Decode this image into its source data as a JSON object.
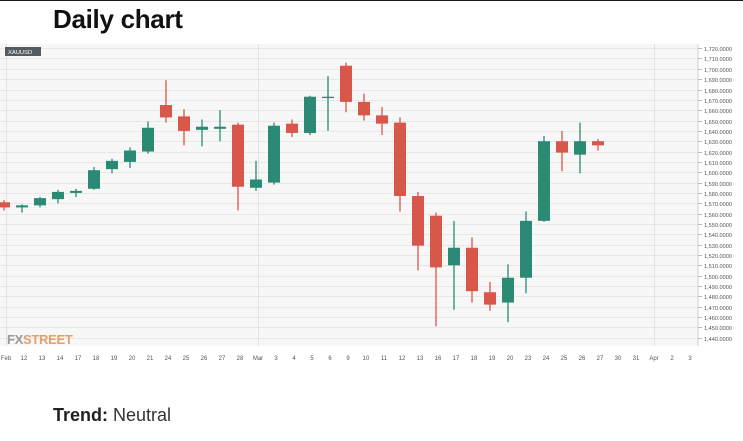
{
  "page": {
    "title": "Daily chart",
    "trend_label": "Trend:",
    "trend_value": "Neutral"
  },
  "chart_data": {
    "type": "candlestick",
    "symbol": "XAUUSD",
    "watermark": {
      "fx": "FX",
      "street": "STREET"
    },
    "colors": {
      "bull": "#2a8a74",
      "bear": "#d9574a",
      "grid": "#e8e8e8",
      "plot_bg": "#f7f7f7",
      "axis_text": "#555555",
      "watermark_fx": "#9a9a9a",
      "watermark_street": "#e0a36a"
    },
    "ylim": [
      1432,
      1724
    ],
    "y_ticks": [
      1440,
      1450,
      1460,
      1470,
      1480,
      1490,
      1500,
      1510,
      1520,
      1530,
      1540,
      1550,
      1560,
      1570,
      1580,
      1590,
      1600,
      1610,
      1620,
      1630,
      1640,
      1650,
      1660,
      1670,
      1680,
      1690,
      1700,
      1710,
      1720
    ],
    "y_tick_labels": [
      "1,440.0000",
      "1,450.0000",
      "1,460.0000",
      "1,470.0000",
      "1,480.0000",
      "1,490.0000",
      "1,500.0000",
      "1,510.0000",
      "1,520.0000",
      "1,530.0000",
      "1,540.0000",
      "1,550.0000",
      "1,560.0000",
      "1,570.0000",
      "1,580.0000",
      "1,590.0000",
      "1,600.0000",
      "1,610.0000",
      "1,620.0000",
      "1,630.0000",
      "1,640.0000",
      "1,650.0000",
      "1,660.0000",
      "1,670.0000",
      "1,680.0000",
      "1,690.0000",
      "1,700.0000",
      "1,710.0000",
      "1,720.0000"
    ],
    "x_labels": [
      "Feb",
      "12",
      "13",
      "14",
      "17",
      "18",
      "19",
      "20",
      "21",
      "24",
      "25",
      "26",
      "27",
      "28",
      "Mar",
      "3",
      "4",
      "5",
      "6",
      "9",
      "10",
      "11",
      "12",
      "13",
      "16",
      "17",
      "18",
      "19",
      "20",
      "23",
      "24",
      "25",
      "26",
      "27",
      "30",
      "31",
      "Apr",
      "2",
      "3"
    ],
    "x_gridlines_at": [
      "Feb",
      "Mar",
      "Apr"
    ],
    "candles": [
      {
        "date": "11",
        "open": 1571,
        "high": 1573,
        "low": 1563,
        "close": 1566
      },
      {
        "date": "12",
        "open": 1566,
        "high": 1569,
        "low": 1561,
        "close": 1568
      },
      {
        "date": "13",
        "open": 1568,
        "high": 1576,
        "low": 1566,
        "close": 1575
      },
      {
        "date": "14",
        "open": 1574,
        "high": 1583,
        "low": 1570,
        "close": 1581
      },
      {
        "date": "17",
        "open": 1580,
        "high": 1584,
        "low": 1576,
        "close": 1582
      },
      {
        "date": "18",
        "open": 1584,
        "high": 1605,
        "low": 1583,
        "close": 1602
      },
      {
        "date": "19",
        "open": 1603,
        "high": 1613,
        "low": 1599,
        "close": 1611
      },
      {
        "date": "20",
        "open": 1610,
        "high": 1624,
        "low": 1604,
        "close": 1621
      },
      {
        "date": "21",
        "open": 1620,
        "high": 1649,
        "low": 1618,
        "close": 1643
      },
      {
        "date": "24",
        "open": 1665,
        "high": 1689,
        "low": 1648,
        "close": 1653
      },
      {
        "date": "25",
        "open": 1654,
        "high": 1661,
        "low": 1626,
        "close": 1640
      },
      {
        "date": "26",
        "open": 1641,
        "high": 1651,
        "low": 1625,
        "close": 1644
      },
      {
        "date": "27",
        "open": 1642,
        "high": 1660,
        "low": 1630,
        "close": 1644
      },
      {
        "date": "28",
        "open": 1646,
        "high": 1648,
        "low": 1563,
        "close": 1586
      },
      {
        "date": "Mar 2",
        "open": 1585,
        "high": 1611,
        "low": 1582,
        "close": 1593
      },
      {
        "date": "3",
        "open": 1590,
        "high": 1648,
        "low": 1588,
        "close": 1645
      },
      {
        "date": "4",
        "open": 1647,
        "high": 1651,
        "low": 1634,
        "close": 1638
      },
      {
        "date": "5",
        "open": 1638,
        "high": 1674,
        "low": 1636,
        "close": 1673
      },
      {
        "date": "6",
        "open": 1673,
        "high": 1693,
        "low": 1640,
        "close": 1673
      },
      {
        "date": "9",
        "open": 1703,
        "high": 1706,
        "low": 1658,
        "close": 1668
      },
      {
        "date": "10",
        "open": 1668,
        "high": 1676,
        "low": 1650,
        "close": 1655
      },
      {
        "date": "11",
        "open": 1655,
        "high": 1663,
        "low": 1636,
        "close": 1647
      },
      {
        "date": "12",
        "open": 1648,
        "high": 1653,
        "low": 1562,
        "close": 1577
      },
      {
        "date": "13",
        "open": 1577,
        "high": 1581,
        "low": 1505,
        "close": 1529
      },
      {
        "date": "16",
        "open": 1558,
        "high": 1561,
        "low": 1451,
        "close": 1508
      },
      {
        "date": "17",
        "open": 1510,
        "high": 1553,
        "low": 1467,
        "close": 1527
      },
      {
        "date": "18",
        "open": 1527,
        "high": 1537,
        "low": 1474,
        "close": 1485
      },
      {
        "date": "19",
        "open": 1484,
        "high": 1494,
        "low": 1466,
        "close": 1472
      },
      {
        "date": "20",
        "open": 1474,
        "high": 1511,
        "low": 1455,
        "close": 1498
      },
      {
        "date": "23",
        "open": 1498,
        "high": 1562,
        "low": 1483,
        "close": 1553
      },
      {
        "date": "24",
        "open": 1553,
        "high": 1635,
        "low": 1552,
        "close": 1630
      },
      {
        "date": "25",
        "open": 1630,
        "high": 1640,
        "low": 1601,
        "close": 1619
      },
      {
        "date": "26",
        "open": 1617,
        "high": 1648,
        "low": 1599,
        "close": 1630
      },
      {
        "date": "27",
        "open": 1630,
        "high": 1632,
        "low": 1621,
        "close": 1626
      }
    ]
  }
}
